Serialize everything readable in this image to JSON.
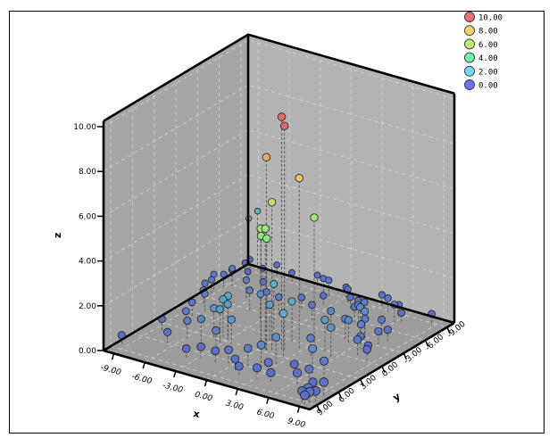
{
  "chart_data": {
    "type": "scatter",
    "subtype": "3d-scatter-with-droplines",
    "title": "",
    "xlabel": "x",
    "ylabel": "y",
    "zlabel": "z",
    "x_range": [
      -10,
      10
    ],
    "y_range": [
      -10,
      10
    ],
    "z_range": [
      0,
      10.25
    ],
    "x_ticks": [
      "-9.00",
      "-6.00",
      "-3.00",
      "0.00",
      "3.00",
      "6.00",
      "9.00"
    ],
    "x_tick_values": [
      -9,
      -6,
      -3,
      0,
      3,
      6,
      9
    ],
    "y_ticks": [
      "9.00",
      "6.00",
      "3.00",
      "0.00",
      "-3.00",
      "-6.00",
      "-9.00"
    ],
    "y_tick_values": [
      9,
      6,
      3,
      0,
      -3,
      -6,
      -9
    ],
    "z_ticks": [
      "0.00",
      "2.00",
      "4.00",
      "6.00",
      "8.00",
      "10.00"
    ],
    "z_tick_values": [
      0,
      2,
      4,
      6,
      8,
      10
    ],
    "grid": true,
    "color_by": "z",
    "legend_position": "top-right",
    "legend": [
      {
        "label": "10.00",
        "color": "#f07070"
      },
      {
        "label": "8.00",
        "color": "#f5d070"
      },
      {
        "label": "6.00",
        "color": "#b8f070"
      },
      {
        "label": "4.00",
        "color": "#70f0a8"
      },
      {
        "label": "2.00",
        "color": "#70d8f5"
      },
      {
        "label": "0.00",
        "color": "#7070f0"
      }
    ],
    "points": [
      {
        "x": 1.6,
        "y": 1.9,
        "z": 10.4
      },
      {
        "x": 1.8,
        "y": 1.8,
        "z": 10.0
      },
      {
        "x": 0.6,
        "y": 2.6,
        "z": 8.6
      },
      {
        "x": 2.6,
        "y": 0.9,
        "z": 7.6
      },
      {
        "x": 1.0,
        "y": 2.4,
        "z": 6.6
      },
      {
        "x": 3.0,
        "y": -0.6,
        "z": 5.6
      },
      {
        "x": 0.2,
        "y": 2.8,
        "z": 5.4
      },
      {
        "x": 0.5,
        "y": 2.6,
        "z": 5.4
      },
      {
        "x": 0.3,
        "y": 2.9,
        "z": 5.1
      },
      {
        "x": 0.7,
        "y": 2.7,
        "z": 5.0
      },
      {
        "x": -9.5,
        "y": 8.2,
        "z": 0.4
      },
      {
        "x": 8.5,
        "y": -9.0,
        "z": 0.4
      },
      {
        "x": 9.3,
        "y": 9.0,
        "z": 0.5
      },
      {
        "x": 9.0,
        "y": 8.8,
        "z": 0.6
      },
      {
        "x": 9.6,
        "y": 8.6,
        "z": 0.5
      },
      {
        "x": 9.1,
        "y": 9.4,
        "z": 0.4
      },
      {
        "x": 8.7,
        "y": 9.2,
        "z": 0.5
      },
      {
        "x": 8.2,
        "y": 7.0,
        "z": 0.4
      },
      {
        "x": 9.4,
        "y": 7.2,
        "z": 0.6
      },
      {
        "x": 7.0,
        "y": 5.8,
        "z": 0.6
      },
      {
        "x": 6.4,
        "y": 6.6,
        "z": 0.5
      },
      {
        "x": 6.2,
        "y": 4.2,
        "z": 1.1
      },
      {
        "x": 7.6,
        "y": 4.6,
        "z": 0.8
      },
      {
        "x": 5.0,
        "y": 5.0,
        "z": 0.4
      },
      {
        "x": 3.6,
        "y": 6.6,
        "z": 0.6
      },
      {
        "x": 3.2,
        "y": 7.6,
        "z": 0.5
      },
      {
        "x": 4.4,
        "y": 7.4,
        "z": 0.4
      },
      {
        "x": 1.6,
        "y": 7.8,
        "z": 0.4
      },
      {
        "x": 0.8,
        "y": 7.2,
        "z": 0.5
      },
      {
        "x": 1.2,
        "y": 6.0,
        "z": 0.8
      },
      {
        "x": 2.2,
        "y": 5.6,
        "z": 1.0
      },
      {
        "x": 2.8,
        "y": 4.4,
        "z": 1.2
      },
      {
        "x": -0.4,
        "y": 6.4,
        "z": 0.6
      },
      {
        "x": -1.4,
        "y": 6.8,
        "z": 0.5
      },
      {
        "x": -2.8,
        "y": 6.8,
        "z": 0.5
      },
      {
        "x": -3.8,
        "y": 7.4,
        "z": 0.4
      },
      {
        "x": -2.6,
        "y": 5.0,
        "z": 0.9
      },
      {
        "x": -1.8,
        "y": 4.0,
        "z": 1.3
      },
      {
        "x": -3.2,
        "y": 3.6,
        "z": 1.5
      },
      {
        "x": -3.6,
        "y": 2.6,
        "z": 1.7
      },
      {
        "x": -3.4,
        "y": 2.2,
        "z": 1.8
      },
      {
        "x": -3.0,
        "y": 2.8,
        "z": 1.6
      },
      {
        "x": -4.2,
        "y": 3.0,
        "z": 1.3
      },
      {
        "x": -4.6,
        "y": 4.2,
        "z": 1.0
      },
      {
        "x": -5.8,
        "y": 4.4,
        "z": 0.8
      },
      {
        "x": -6.6,
        "y": 6.0,
        "z": 0.5
      },
      {
        "x": -7.2,
        "y": 2.6,
        "z": 0.7
      },
      {
        "x": -8.4,
        "y": 4.2,
        "z": 0.5
      },
      {
        "x": -8.0,
        "y": 0.6,
        "z": 0.6
      },
      {
        "x": -7.6,
        "y": -0.6,
        "z": 0.8
      },
      {
        "x": -8.6,
        "y": -1.8,
        "z": 0.6
      },
      {
        "x": -9.0,
        "y": -2.6,
        "z": 0.7
      },
      {
        "x": -9.2,
        "y": -3.8,
        "z": 0.6
      },
      {
        "x": -9.4,
        "y": -4.4,
        "z": 0.7
      },
      {
        "x": -9.0,
        "y": -5.2,
        "z": 0.6
      },
      {
        "x": -8.6,
        "y": -5.8,
        "z": 0.8
      },
      {
        "x": -9.2,
        "y": -6.6,
        "z": 0.5
      },
      {
        "x": -8.2,
        "y": -7.4,
        "z": 0.4
      },
      {
        "x": -7.6,
        "y": -8.6,
        "z": 0.4
      },
      {
        "x": -9.6,
        "y": -9.0,
        "z": 0.3
      },
      {
        "x": -9.4,
        "y": -9.4,
        "z": 0.4
      },
      {
        "x": -6.4,
        "y": -4.6,
        "z": 0.8
      },
      {
        "x": -5.6,
        "y": -5.8,
        "z": 0.6
      },
      {
        "x": -4.8,
        "y": -2.8,
        "z": 0.9
      },
      {
        "x": -4.0,
        "y": -4.0,
        "z": 0.7
      },
      {
        "x": -3.2,
        "y": -2.0,
        "z": 1.1
      },
      {
        "x": -2.4,
        "y": -3.4,
        "z": 0.8
      },
      {
        "x": -1.6,
        "y": -5.4,
        "z": 0.5
      },
      {
        "x": -0.6,
        "y": -7.0,
        "z": 0.4
      },
      {
        "x": -1.2,
        "y": -1.0,
        "z": 2.0
      },
      {
        "x": 0.4,
        "y": -4.0,
        "z": 0.7
      },
      {
        "x": -9.8,
        "y": -9.8,
        "z": 2.1
      },
      {
        "x": -8.8,
        "y": -9.6,
        "z": 2.6
      },
      {
        "x": -6.8,
        "y": -9.4,
        "z": 0.5
      },
      {
        "x": -5.2,
        "y": -9.2,
        "z": 0.4
      },
      {
        "x": -3.0,
        "y": -9.6,
        "z": 0.5
      },
      {
        "x": -2.0,
        "y": -9.0,
        "z": 0.6
      },
      {
        "x": -1.2,
        "y": -8.6,
        "z": 0.7
      },
      {
        "x": 0.2,
        "y": -9.0,
        "z": 0.5
      },
      {
        "x": 0.8,
        "y": -8.4,
        "z": 0.6
      },
      {
        "x": 1.6,
        "y": -7.6,
        "z": 0.5
      },
      {
        "x": 2.2,
        "y": -7.8,
        "z": 0.4
      },
      {
        "x": 3.8,
        "y": -6.4,
        "z": 0.8
      },
      {
        "x": 3.4,
        "y": -5.6,
        "z": 0.7
      },
      {
        "x": 4.2,
        "y": -5.0,
        "z": 1.0
      },
      {
        "x": 4.8,
        "y": -4.4,
        "z": 1.1
      },
      {
        "x": 5.4,
        "y": -4.2,
        "z": 0.7
      },
      {
        "x": 5.8,
        "y": -3.6,
        "z": 1.2
      },
      {
        "x": 6.0,
        "y": -2.8,
        "z": 0.8
      },
      {
        "x": 5.2,
        "y": -2.2,
        "z": 1.0
      },
      {
        "x": 4.6,
        "y": -2.6,
        "z": 0.9
      },
      {
        "x": 6.6,
        "y": -4.8,
        "z": 0.7
      },
      {
        "x": 7.4,
        "y": -3.2,
        "z": 0.6
      },
      {
        "x": 7.6,
        "y": -4.2,
        "z": 0.5
      },
      {
        "x": 6.8,
        "y": -1.6,
        "z": 0.6
      },
      {
        "x": 7.2,
        "y": -0.6,
        "z": 0.7
      },
      {
        "x": 7.8,
        "y": -1.2,
        "z": 0.4
      },
      {
        "x": 8.4,
        "y": -0.2,
        "z": 0.5
      },
      {
        "x": 5.6,
        "y": 0.8,
        "z": 1.3
      },
      {
        "x": 4.6,
        "y": 0.2,
        "z": 1.4
      },
      {
        "x": 4.2,
        "y": 1.6,
        "z": 0.8
      },
      {
        "x": 3.4,
        "y": -9.4,
        "z": 0.5
      },
      {
        "x": 4.4,
        "y": -8.8,
        "z": 0.6
      },
      {
        "x": 5.6,
        "y": -8.6,
        "z": 0.5
      },
      {
        "x": 6.0,
        "y": -7.4,
        "z": 0.8
      },
      {
        "x": 6.4,
        "y": -7.8,
        "z": 0.4
      },
      {
        "x": 2.8,
        "y": -3.2,
        "z": 0.9
      },
      {
        "x": 1.4,
        "y": 0.2,
        "z": 1.8
      },
      {
        "x": -0.2,
        "y": 1.0,
        "z": 1.6
      },
      {
        "x": 2.4,
        "y": 2.8,
        "z": 1.9
      }
    ]
  }
}
